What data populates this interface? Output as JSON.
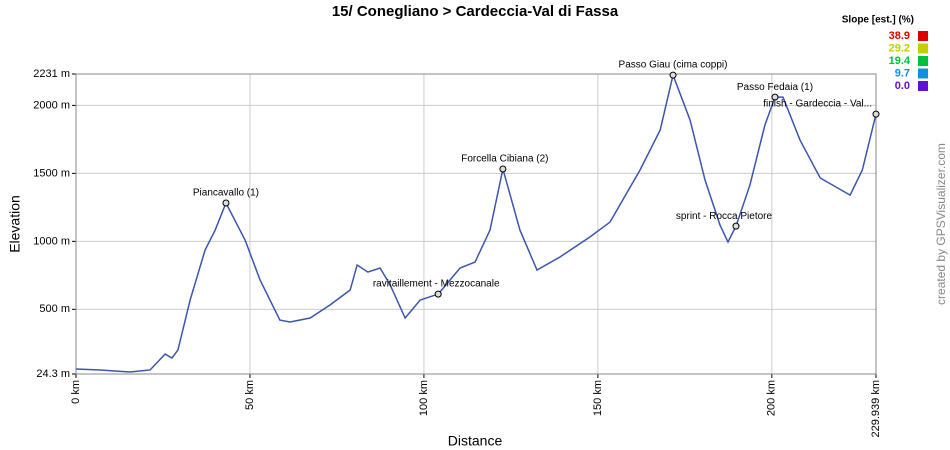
{
  "chart_data": {
    "type": "line",
    "title": "15/ Conegliano > Cardeccia-Val di Fassa",
    "xlabel": "Distance",
    "ylabel": "Elevation",
    "watermark": "created by GPSVisualizer.com",
    "x": [
      0,
      6.9,
      15.5,
      21.3,
      25.6,
      27.6,
      29.3,
      32.8,
      37.1,
      40,
      43.1,
      48.6,
      52.9,
      58.6,
      61.5,
      67.3,
      73,
      78.8,
      80.8,
      83.9,
      87.4,
      90.3,
      94.6,
      98.9,
      104.1,
      110.4,
      114.7,
      119,
      122.7,
      127.6,
      132.5,
      139.1,
      147.7,
      153.5,
      162.1,
      167.9,
      171.6,
      176.5,
      180.8,
      185.1,
      187.4,
      189.7,
      193.7,
      198,
      200.9,
      203.2,
      208.1,
      213.9,
      222.5,
      226,
      229.939
    ],
    "series": [
      {
        "color": "#3a55b0",
        "values": [
          61,
          54,
          39,
          54,
          171,
          142,
          201,
          568,
          936,
          1083,
          1282,
          1010,
          716,
          421,
          407,
          436,
          532,
          642,
          826,
          774,
          804,
          679,
          436,
          568,
          612,
          804,
          848,
          1083,
          1532,
          1083,
          789,
          885,
          1032,
          1142,
          1524,
          1818,
          2223,
          1892,
          1451,
          1120,
          995,
          1112,
          1414,
          1855,
          2061,
          2061,
          1745,
          1466,
          1340,
          1524,
          1936
        ]
      }
    ],
    "annotations": [
      {
        "label": "Piancavallo (1)",
        "x": 43.1,
        "y": 1282
      },
      {
        "label": "ravitaillement - Mezzocanale",
        "x": 104.1,
        "y": 612
      },
      {
        "label": "Forcella Cibiana (2)",
        "x": 122.7,
        "y": 1532
      },
      {
        "label": "Passo Giau (cima coppi)",
        "x": 171.6,
        "y": 2223
      },
      {
        "label": "sprint - Rocca Pietore",
        "x": 189.7,
        "y": 1112
      },
      {
        "label": "Passo Fedaia (1)",
        "x": 200.9,
        "y": 2061
      },
      {
        "label": "finish - Gardeccia - Val...",
        "x": 229.939,
        "y": 1936
      }
    ],
    "xlim": [
      0,
      229.939
    ],
    "ylim": [
      24.3,
      2231
    ],
    "xticks": [
      {
        "value": 0,
        "label": "0 km"
      },
      {
        "value": 50,
        "label": "50 km"
      },
      {
        "value": 100,
        "label": "100 km"
      },
      {
        "value": 150,
        "label": "150 km"
      },
      {
        "value": 200,
        "label": "200 km"
      },
      {
        "value": 229.939,
        "label": "229.939 km"
      }
    ],
    "yticks": [
      {
        "value": 24.3,
        "label": "24.3 m"
      },
      {
        "value": 500,
        "label": "500 m"
      },
      {
        "value": 1000,
        "label": "1000 m"
      },
      {
        "value": 1500,
        "label": "1500 m"
      },
      {
        "value": 2000,
        "label": "2000 m"
      },
      {
        "value": 2231,
        "label": "2231 m"
      }
    ],
    "grid": true,
    "legend": {
      "title": "Slope [est.] (%)",
      "values": [
        38.9,
        29.2,
        19.4,
        9.7,
        0
      ],
      "value_labels": [
        "38.9",
        "29.2",
        "19.4",
        "9.7",
        "0.0"
      ],
      "colors": [
        "#e00000",
        "#c0d000",
        "#00c040",
        "#1090e0",
        "#6010d0"
      ]
    }
  }
}
